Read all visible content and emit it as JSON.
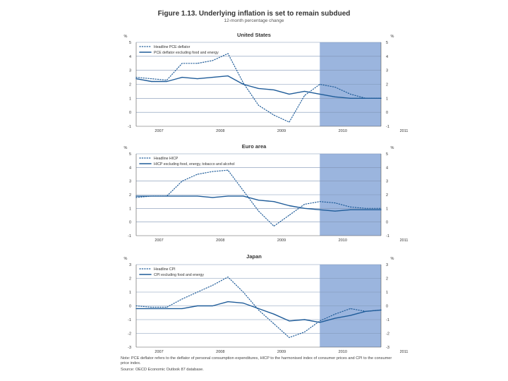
{
  "figure": {
    "title": "Figure 1.13. Underlying inflation is set to remain subdued",
    "subtitle": "12-month percentage change",
    "note": "Note: PCE deflator refers to the deflator of personal consumption expenditures, HICP to the harmonised index of consumer prices and CPI to the consumer price index.",
    "source": "Source: OECD Economic Outlook 87 database."
  },
  "colors": {
    "series_line": "#1f5c99",
    "projection_shade": "#9bb5de",
    "gridline": "#7f95b5"
  },
  "chart_data": [
    {
      "type": "line",
      "title": "United States",
      "ylabel_left": "%",
      "ylabel_right": "%",
      "ylim": [
        -1,
        5
      ],
      "yticks": [
        "5",
        "4",
        "3",
        "2",
        "1",
        "0",
        "-1"
      ],
      "xlim": [
        0,
        16
      ],
      "xticks": [
        {
          "label": "2007",
          "x": 1.5
        },
        {
          "label": "2008",
          "x": 5.5
        },
        {
          "label": "2009",
          "x": 9.5
        },
        {
          "label": "2010",
          "x": 13.5
        },
        {
          "label": "2011",
          "x": 17.5
        }
      ],
      "projection_start": 12,
      "series": [
        {
          "name": "Headline PCE deflator",
          "style": "dotted",
          "x": [
            0,
            1,
            2,
            3,
            4,
            5,
            6,
            7,
            8,
            9,
            10,
            11,
            12,
            13,
            14,
            15,
            16
          ],
          "values": [
            2.5,
            2.4,
            2.3,
            3.5,
            3.5,
            3.7,
            4.2,
            2.1,
            0.5,
            -0.2,
            -0.7,
            1.2,
            2.0,
            1.8,
            1.3,
            1.0,
            1.0
          ]
        },
        {
          "name": "PCE deflator excluding food and energy",
          "style": "solid",
          "x": [
            0,
            1,
            2,
            3,
            4,
            5,
            6,
            7,
            8,
            9,
            10,
            11,
            12,
            13,
            14,
            15,
            16
          ],
          "values": [
            2.4,
            2.2,
            2.2,
            2.5,
            2.4,
            2.5,
            2.6,
            2.0,
            1.7,
            1.6,
            1.3,
            1.5,
            1.3,
            1.1,
            1.0,
            1.0,
            1.0
          ]
        }
      ]
    },
    {
      "type": "line",
      "title": "Euro area",
      "ylabel_left": "%",
      "ylabel_right": "%",
      "ylim": [
        -1,
        5
      ],
      "yticks": [
        "5",
        "4",
        "3",
        "2",
        "1",
        "0",
        "-1"
      ],
      "xlim": [
        0,
        16
      ],
      "xticks": [
        {
          "label": "2007",
          "x": 1.5
        },
        {
          "label": "2008",
          "x": 5.5
        },
        {
          "label": "2009",
          "x": 9.5
        },
        {
          "label": "2010",
          "x": 13.5
        },
        {
          "label": "2011",
          "x": 17.5
        }
      ],
      "projection_start": 12,
      "series": [
        {
          "name": "Headline HICP",
          "style": "dotted",
          "x": [
            0,
            1,
            2,
            3,
            4,
            5,
            6,
            7,
            8,
            9,
            10,
            11,
            12,
            13,
            14,
            15,
            16
          ],
          "values": [
            1.8,
            1.9,
            1.9,
            3.0,
            3.5,
            3.7,
            3.8,
            2.3,
            0.8,
            -0.3,
            0.5,
            1.3,
            1.5,
            1.4,
            1.1,
            1.0,
            1.0
          ]
        },
        {
          "name": "HICP excluding food, energy, tobacco and alcohol",
          "style": "solid",
          "x": [
            0,
            1,
            2,
            3,
            4,
            5,
            6,
            7,
            8,
            9,
            10,
            11,
            12,
            13,
            14,
            15,
            16
          ],
          "values": [
            1.9,
            1.9,
            1.9,
            1.9,
            1.9,
            1.8,
            1.9,
            1.9,
            1.6,
            1.5,
            1.2,
            1.0,
            0.9,
            0.8,
            0.9,
            0.9,
            0.9
          ]
        }
      ]
    },
    {
      "type": "line",
      "title": "Japan",
      "ylabel_left": "%",
      "ylabel_right": "%",
      "ylim": [
        -3,
        3
      ],
      "yticks": [
        "3",
        "2",
        "1",
        "0",
        "-1",
        "-2",
        "-3"
      ],
      "xlim": [
        0,
        16
      ],
      "xticks": [
        {
          "label": "2007",
          "x": 1.5
        },
        {
          "label": "2008",
          "x": 5.5
        },
        {
          "label": "2009",
          "x": 9.5
        },
        {
          "label": "2010",
          "x": 13.5
        },
        {
          "label": "2011",
          "x": 17.5
        }
      ],
      "projection_start": 12,
      "series": [
        {
          "name": "Headline CPI",
          "style": "dotted",
          "x": [
            0,
            1,
            2,
            3,
            4,
            5,
            6,
            7,
            8,
            9,
            10,
            11,
            12,
            13,
            14,
            15,
            16
          ],
          "values": [
            0.0,
            -0.1,
            -0.1,
            0.5,
            1.0,
            1.5,
            2.1,
            1.0,
            -0.3,
            -1.3,
            -2.3,
            -1.9,
            -1.1,
            -0.6,
            -0.2,
            -0.4,
            -0.3
          ]
        },
        {
          "name": "CPI excluding food and energy",
          "style": "solid",
          "x": [
            0,
            1,
            2,
            3,
            4,
            5,
            6,
            7,
            8,
            9,
            10,
            11,
            12,
            13,
            14,
            15,
            16
          ],
          "values": [
            -0.2,
            -0.2,
            -0.2,
            -0.2,
            0.0,
            0.0,
            0.3,
            0.2,
            -0.2,
            -0.6,
            -1.1,
            -1.0,
            -1.2,
            -0.9,
            -0.7,
            -0.4,
            -0.3
          ]
        }
      ]
    }
  ]
}
